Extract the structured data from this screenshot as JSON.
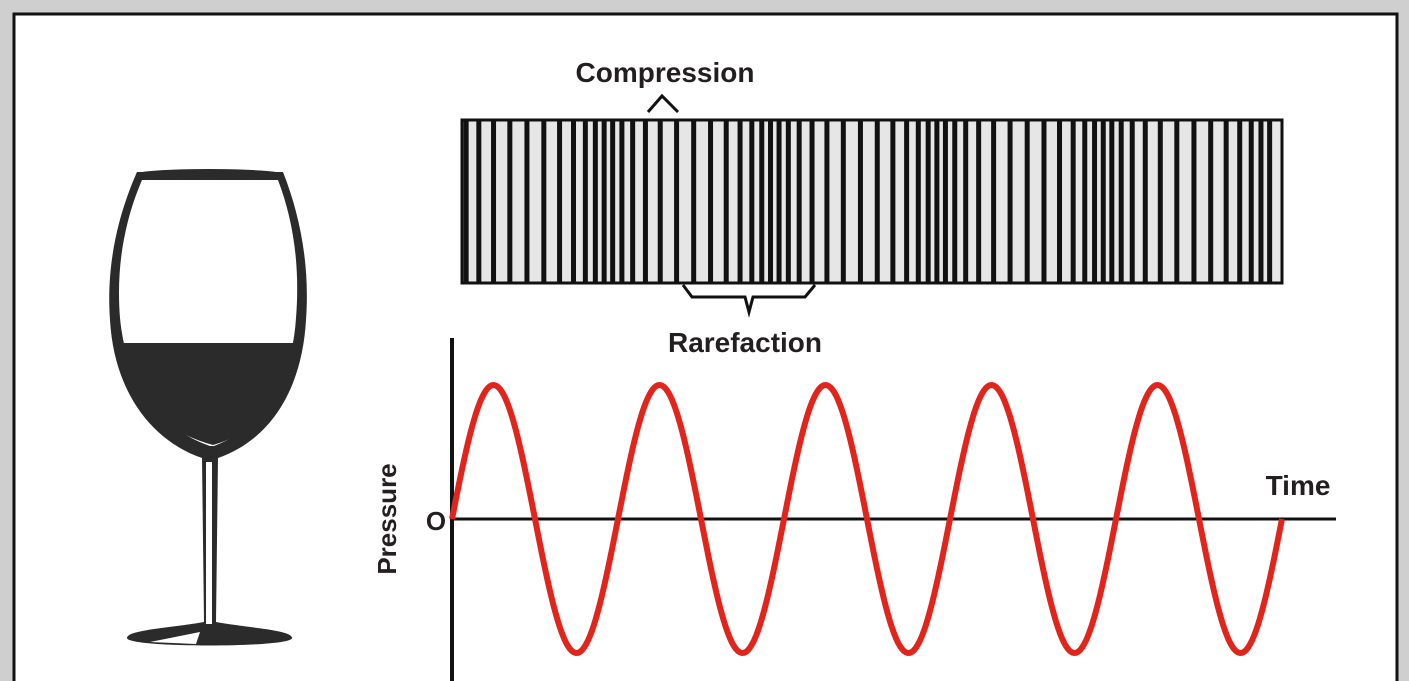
{
  "labels": {
    "compression": "Compression",
    "rarefaction": "Rarefaction",
    "pressure": "Pressure",
    "origin": "O",
    "time": "Time"
  }
}
